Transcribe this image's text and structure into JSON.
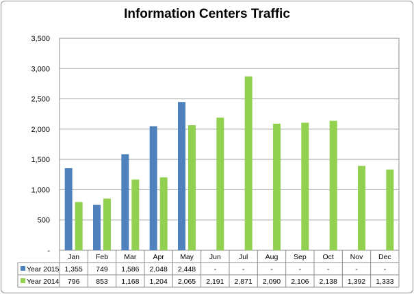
{
  "chart_data": {
    "type": "bar",
    "title": "Information Centers Traffic",
    "categories": [
      "Jan",
      "Feb",
      "Mar",
      "Apr",
      "May",
      "Jun",
      "Jul",
      "Aug",
      "Sep",
      "Oct",
      "Nov",
      "Dec"
    ],
    "ylim": [
      0,
      3500
    ],
    "yticks": [
      "-",
      "500",
      "1,000",
      "1,500",
      "2,000",
      "2,500",
      "3,000",
      "3,500"
    ],
    "grid": true,
    "series": [
      {
        "name": "Year 2015",
        "color": "#4f81bd",
        "values": [
          1355,
          749,
          1586,
          2048,
          2448,
          null,
          null,
          null,
          null,
          null,
          null,
          null
        ],
        "labels": [
          "1,355",
          "749",
          "1,586",
          "2,048",
          "2,448",
          "-",
          "-",
          "-",
          "-",
          "-",
          "-",
          "-"
        ]
      },
      {
        "name": "Year 2014",
        "color": "#92d050",
        "values": [
          796,
          853,
          1168,
          1204,
          2065,
          2191,
          2871,
          2090,
          2106,
          2138,
          1392,
          1333
        ],
        "labels": [
          "796",
          "853",
          "1,168",
          "1,204",
          "2,065",
          "2,191",
          "2,871",
          "2,090",
          "2,106",
          "2,138",
          "1,392",
          "1,333"
        ]
      }
    ]
  }
}
